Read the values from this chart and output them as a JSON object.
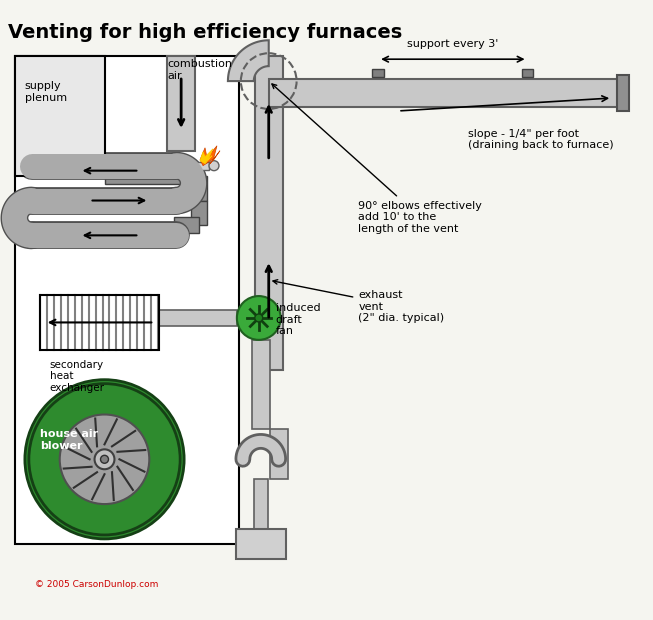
{
  "title": "Venting for high efficiency furnaces",
  "title_fontsize": 14,
  "title_fontweight": "bold",
  "bg_color": "#f5f5f0",
  "gray_pipe": "#a0a0a0",
  "dark_gray": "#606060",
  "light_gray": "#c8c8c8",
  "green_color": "#2e8b2e",
  "green_light": "#3aaa3a",
  "white": "#ffffff",
  "black": "#000000",
  "orange": "#ff6600",
  "yellow": "#ffcc00",
  "annotations": {
    "support_every_3": "support every 3'",
    "slope": "slope - 1/4\" per foot\n(draining back to furnace)",
    "elbows": "90° elbows effectively\nadd 10' to the\nlength of the vent",
    "exhaust": "exhaust\nvent\n(2\" dia. typical)",
    "induced_draft": "induced\ndraft\nfan",
    "secondary_hx": "secondary\nheat\nexchanger",
    "house_air": "house air\nblower",
    "supply_plenum": "supply\nplenum",
    "combustion_air": "combustion\nair",
    "copyright": "© 2005 CarsonDunlop.com"
  }
}
